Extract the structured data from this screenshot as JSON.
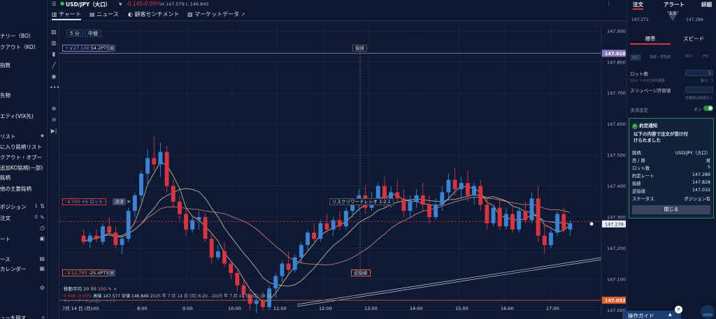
{
  "sidebar": {
    "items": [
      {
        "label": "ナリー（BO）",
        "icon": ""
      },
      {
        "label": "クアウト（KO）",
        "icon": ""
      },
      {
        "label": "指数",
        "icon": ""
      },
      {
        "label": "先物",
        "icon": ""
      },
      {
        "label": "エティ(VIX先)",
        "icon": ""
      },
      {
        "label": "リスト",
        "icon": "★"
      },
      {
        "label": "に入り銘柄リスト",
        "icon": ""
      },
      {
        "label": "クアウト・オプー",
        "icon": ""
      },
      {
        "label": "追加KO銘柄(一部)",
        "icon": ""
      },
      {
        "label": "銘柄",
        "icon": ""
      },
      {
        "label": "他の主要銘柄",
        "icon": ""
      },
      {
        "label": "ポジション",
        "count": "1",
        "icon": "⇅"
      },
      {
        "label": "注文",
        "count": "0",
        "icon": "✎"
      },
      {
        "label": "",
        "icon": "◷"
      },
      {
        "label": "ート",
        "icon": "▣"
      },
      {
        "label": "ース",
        "icon": "▤"
      },
      {
        "label": "カレンダー",
        "icon": "▦"
      },
      {
        "label": "",
        "icon": "⚙"
      },
      {
        "label": "ューを隠す",
        "icon": "«"
      }
    ]
  },
  "header": {
    "symbol": "USD/JPY（大口）",
    "change": "-0.140",
    "change_pct": "-0.09%",
    "hl": "H 147.579 L 146.845",
    "expand": "⋮"
  },
  "tabs": [
    {
      "label": "チャート",
      "icon": "▥"
    },
    {
      "label": "ニュース",
      "icon": "▤"
    },
    {
      "label": "顧客センチメント",
      "icon": "◐"
    },
    {
      "label": "マーケットデータ",
      "icon": "▧"
    }
  ],
  "chart_controls": {
    "timeframe": "5 分",
    "price_mode": "中値"
  },
  "chart_data": {
    "type": "candlestick",
    "y_ticks": [
      "147.900",
      "147.800",
      "147.700",
      "147.600",
      "147.500",
      "147.400",
      "147.300",
      "147.200",
      "147.100",
      "147.000"
    ],
    "x_ticks": [
      "8:00",
      "9:00",
      "10:00",
      "11:00",
      "12:00",
      "13:00",
      "14:00",
      "15:00",
      "16:00",
      "17:00"
    ],
    "date_label": "7月 14 日 (月)",
    "x_start_partial": ":00",
    "ylim": [
      146.985,
      147.93
    ],
    "take_profit": {
      "price": "147.828",
      "pnl": "+￥27,100",
      "pts": "54.2PTS",
      "label": "指値"
    },
    "stop_loss": {
      "price": "147.032",
      "pnl": "-￥12,700",
      "pts": "-25.4PTS",
      "label": "逆指値"
    },
    "position": {
      "price": "147.286",
      "pnl": "-￥750",
      "lots": "+5 ロット",
      "label": "決済"
    },
    "current_price": "147.278",
    "rr_label": "リスクリワードレシオ 1:2.1",
    "indicator": {
      "name": "移動平均",
      "periods": [
        "20",
        "50",
        "100"
      ]
    },
    "ohlc_line": {
      "open": "0.046",
      "pct": "-0.09%",
      "high_label": "高値",
      "high": "147.577",
      "low_label": "安値",
      "low": "146.849"
    },
    "range_text": "2025 年 7 月 14 日 (月) 6:20 - 2025 年 7 月 14 日 (月) 18:35",
    "note": "チャートデータは中値レートです",
    "candles": [
      [
        147.24,
        147.26,
        147.21,
        147.22
      ],
      [
        147.22,
        147.25,
        147.2,
        147.24
      ],
      [
        147.24,
        147.26,
        147.22,
        147.23
      ],
      [
        147.22,
        147.28,
        147.21,
        147.27
      ],
      [
        147.27,
        147.3,
        147.24,
        147.25
      ],
      [
        147.25,
        147.27,
        147.2,
        147.21
      ],
      [
        147.21,
        147.24,
        147.18,
        147.23
      ],
      [
        147.23,
        147.33,
        147.22,
        147.32
      ],
      [
        147.32,
        147.38,
        147.3,
        147.37
      ],
      [
        147.37,
        147.45,
        147.35,
        147.44
      ],
      [
        147.44,
        147.52,
        147.4,
        147.49
      ],
      [
        147.49,
        147.56,
        147.45,
        147.47
      ],
      [
        147.47,
        147.54,
        147.43,
        147.51
      ],
      [
        147.51,
        147.53,
        147.38,
        147.4
      ],
      [
        147.4,
        147.42,
        147.33,
        147.35
      ],
      [
        147.35,
        147.37,
        147.29,
        147.31
      ],
      [
        147.31,
        147.33,
        147.24,
        147.26
      ],
      [
        147.26,
        147.3,
        147.25,
        147.29
      ],
      [
        147.29,
        147.32,
        147.26,
        147.3
      ],
      [
        147.3,
        147.31,
        147.22,
        147.23
      ],
      [
        147.23,
        147.25,
        147.15,
        147.17
      ],
      [
        147.17,
        147.21,
        147.16,
        147.19
      ],
      [
        147.19,
        147.22,
        147.14,
        147.15
      ],
      [
        147.15,
        147.16,
        147.1,
        147.12
      ],
      [
        147.12,
        147.13,
        147.06,
        147.08
      ],
      [
        147.08,
        147.1,
        147.03,
        147.05
      ],
      [
        147.05,
        147.07,
        147.0,
        147.02
      ],
      [
        147.02,
        147.04,
        146.99,
        147.03
      ],
      [
        147.03,
        147.06,
        147.0,
        147.01
      ],
      [
        147.01,
        147.08,
        147.0,
        147.07
      ],
      [
        147.07,
        147.12,
        147.04,
        147.11
      ],
      [
        147.11,
        147.16,
        147.09,
        147.15
      ],
      [
        147.15,
        147.19,
        147.12,
        147.13
      ],
      [
        147.13,
        147.18,
        147.12,
        147.17
      ],
      [
        147.17,
        147.22,
        147.15,
        147.21
      ],
      [
        147.21,
        147.26,
        147.19,
        147.25
      ],
      [
        147.25,
        147.28,
        147.22,
        147.23
      ],
      [
        147.23,
        147.29,
        147.22,
        147.28
      ],
      [
        147.28,
        147.31,
        147.25,
        147.26
      ],
      [
        147.26,
        147.3,
        147.24,
        147.29
      ],
      [
        147.29,
        147.32,
        147.26,
        147.27
      ],
      [
        147.27,
        147.33,
        147.26,
        147.32
      ],
      [
        147.32,
        147.36,
        147.3,
        147.34
      ],
      [
        147.34,
        147.39,
        147.32,
        147.37
      ],
      [
        147.37,
        147.4,
        147.31,
        147.33
      ],
      [
        147.33,
        147.38,
        147.32,
        147.36
      ],
      [
        147.36,
        147.41,
        147.34,
        147.4
      ],
      [
        147.4,
        147.43,
        147.33,
        147.35
      ],
      [
        147.35,
        147.4,
        147.33,
        147.38
      ],
      [
        147.38,
        147.42,
        147.35,
        147.36
      ],
      [
        147.36,
        147.39,
        147.3,
        147.32
      ],
      [
        147.32,
        147.37,
        147.3,
        147.35
      ],
      [
        147.35,
        147.39,
        147.33,
        147.37
      ],
      [
        147.37,
        147.41,
        147.32,
        147.34
      ],
      [
        147.34,
        147.37,
        147.28,
        147.3
      ],
      [
        147.3,
        147.36,
        147.29,
        147.34
      ],
      [
        147.34,
        147.4,
        147.32,
        147.38
      ],
      [
        147.38,
        147.44,
        147.36,
        147.42
      ],
      [
        147.42,
        147.46,
        147.37,
        147.39
      ],
      [
        147.39,
        147.43,
        147.36,
        147.41
      ],
      [
        147.41,
        147.45,
        147.35,
        147.37
      ],
      [
        147.37,
        147.41,
        147.34,
        147.4
      ],
      [
        147.4,
        147.42,
        147.32,
        147.34
      ],
      [
        147.34,
        147.36,
        147.26,
        147.28
      ],
      [
        147.28,
        147.34,
        147.27,
        147.33
      ],
      [
        147.33,
        147.36,
        147.26,
        147.27
      ],
      [
        147.27,
        147.33,
        147.26,
        147.31
      ],
      [
        147.31,
        147.34,
        147.25,
        147.26
      ],
      [
        147.26,
        147.33,
        147.25,
        147.32
      ],
      [
        147.32,
        147.35,
        147.28,
        147.29
      ],
      [
        147.29,
        147.38,
        147.28,
        147.36
      ],
      [
        147.36,
        147.4,
        147.22,
        147.24
      ],
      [
        147.24,
        147.28,
        147.18,
        147.21
      ],
      [
        147.21,
        147.26,
        147.2,
        147.25
      ],
      [
        147.25,
        147.32,
        147.24,
        147.31
      ],
      [
        147.31,
        147.33,
        147.25,
        147.26
      ],
      [
        147.26,
        147.29,
        147.24,
        147.28
      ]
    ],
    "series": [
      {
        "name": "20",
        "color": "#e6c9a0"
      },
      {
        "name": "50",
        "color": "#c7d8b0"
      },
      {
        "name": "100",
        "color": "#e58b8b"
      }
    ]
  },
  "right_panel": {
    "tabs": [
      "注文",
      "アラート",
      "詳細"
    ],
    "sell_price": "147.271",
    "buy_price": "147.286",
    "spread": "1.5",
    "order_modes": [
      "標準",
      "スピード"
    ],
    "order_types": [
      "成行",
      "指値・逆指値",
      "OCO",
      "IFD"
    ],
    "lots_label": "ロット数",
    "lots_value": "5",
    "lots_note": "1ロット=10,000通貨",
    "lots_min": "最小：1",
    "slippage_label": "スリッページ許容値",
    "slippage_note": "空欄時は制限なし",
    "settle_label": "決済設定",
    "settle_state": "オン",
    "notice": {
      "title": "約定通知",
      "message": "以下の内容で注文が受け付けられました",
      "rows": [
        {
          "k": "銘柄",
          "v": "USD/JPY（大口）"
        },
        {
          "k": "売 / 買",
          "v": "買"
        },
        {
          "k": "ロット数",
          "v": "5"
        },
        {
          "k": "約定レート",
          "v": "147.286"
        },
        {
          "k": "指値",
          "v": "147.828"
        },
        {
          "k": "逆指値",
          "v": "147.032"
        },
        {
          "k": "ステータス",
          "v": "ポジション有"
        }
      ],
      "close_label": "閉じる"
    }
  },
  "guide": {
    "label": "操作ガイド",
    "close": "×",
    "badge": "OPEN"
  },
  "colors": {
    "bull": "#3a84d6",
    "bear": "#d9343f",
    "tp": "#8d7bc0",
    "sl": "#e0622d",
    "accent": "#2f8a44"
  }
}
